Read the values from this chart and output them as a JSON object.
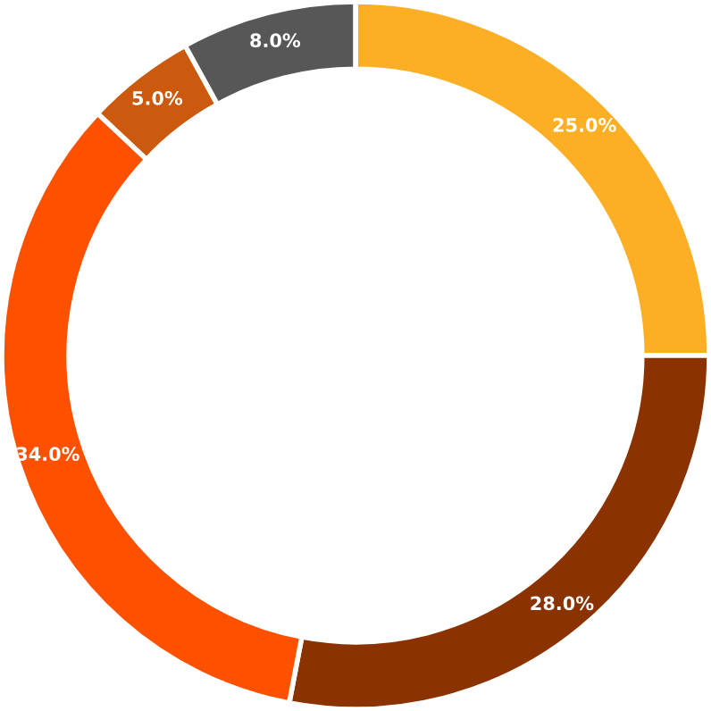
{
  "chart_data": {
    "type": "donut",
    "categories": [
      null,
      null,
      null,
      null,
      null
    ],
    "values": [
      25,
      28,
      34,
      5,
      8
    ],
    "colors": [
      "#fcaf24",
      "#8a3300",
      "#fe5100",
      "#cc5a0e",
      "#575757"
    ],
    "value_labels": [
      "25.0%",
      "28.0%",
      "34.0%",
      "5.0%",
      "8.0%"
    ]
  }
}
